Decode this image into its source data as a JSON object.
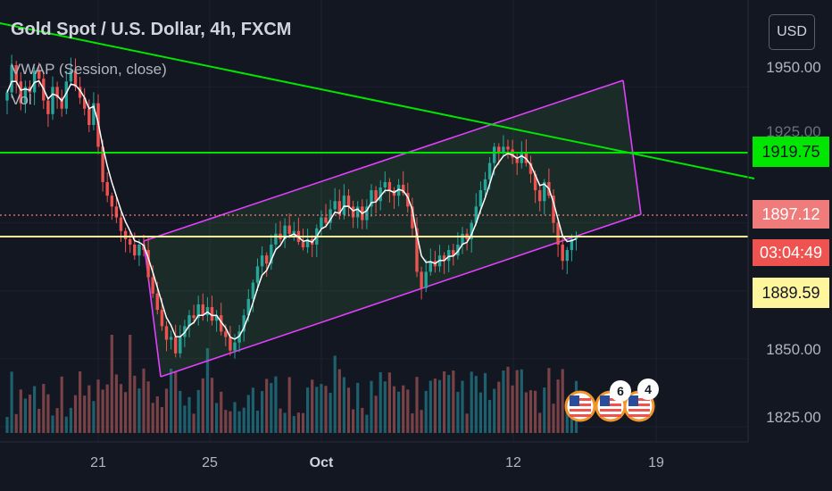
{
  "header": {
    "title": "Gold Spot / U.S. Dollar, 4h, FXCM",
    "indicator": "VWAP (Session, close)",
    "volume_label": "Vol",
    "currency_button": "USD"
  },
  "chart_data": {
    "type": "candlestick",
    "x_ticks": [
      "21",
      "25",
      "Oct",
      "12",
      "19"
    ],
    "y_ticks": [
      "1950.00",
      "1925.00",
      "1900.00",
      "1875.00",
      "1850.00",
      "1825.00"
    ],
    "ylim": [
      1820,
      1965
    ],
    "price_labels": {
      "resistance": "1919.75",
      "last_price": "1897.12",
      "countdown": "03:04:49",
      "support": "1889.59"
    },
    "events": [
      {
        "flag": "us",
        "count": ""
      },
      {
        "flag": "us",
        "count": "6"
      },
      {
        "flag": "us",
        "count": "4"
      }
    ],
    "colors": {
      "up": "#26a69a",
      "down": "#ef5350",
      "channel": "#e040fb",
      "trendline": "#00e600",
      "support": "#fff59d",
      "vwap": "#ffffff"
    },
    "close_path": [
      1948,
      1958,
      1952,
      1944,
      1950,
      1948,
      1956,
      1953,
      1945,
      1940,
      1950,
      1946,
      1942,
      1952,
      1956,
      1950,
      1946,
      1942,
      1936,
      1944,
      1928,
      1915,
      1910,
      1906,
      1902,
      1897,
      1894,
      1892,
      1888,
      1892,
      1890,
      1880,
      1874,
      1868,
      1862,
      1857,
      1858,
      1852,
      1858,
      1862,
      1866,
      1865,
      1870,
      1866,
      1869,
      1864,
      1866,
      1860,
      1858,
      1853,
      1856,
      1860,
      1866,
      1872,
      1878,
      1884,
      1888,
      1885,
      1892,
      1896,
      1894,
      1899,
      1896,
      1897,
      1893,
      1891,
      1894,
      1892,
      1898,
      1902,
      1900,
      1905,
      1908,
      1903,
      1910,
      1906,
      1902,
      1906,
      1901,
      1906,
      1912,
      1908,
      1913,
      1915,
      1912,
      1910,
      1914,
      1911,
      1906,
      1898,
      1882,
      1876,
      1882,
      1886,
      1884,
      1888,
      1886,
      1890,
      1888,
      1892,
      1896,
      1894,
      1900,
      1906,
      1912,
      1916,
      1922,
      1928,
      1926,
      1928,
      1927,
      1924,
      1922,
      1926,
      1922,
      1918,
      1912,
      1908,
      1915,
      1910,
      1900,
      1892,
      1886,
      1890,
      1894,
      1895
    ]
  }
}
